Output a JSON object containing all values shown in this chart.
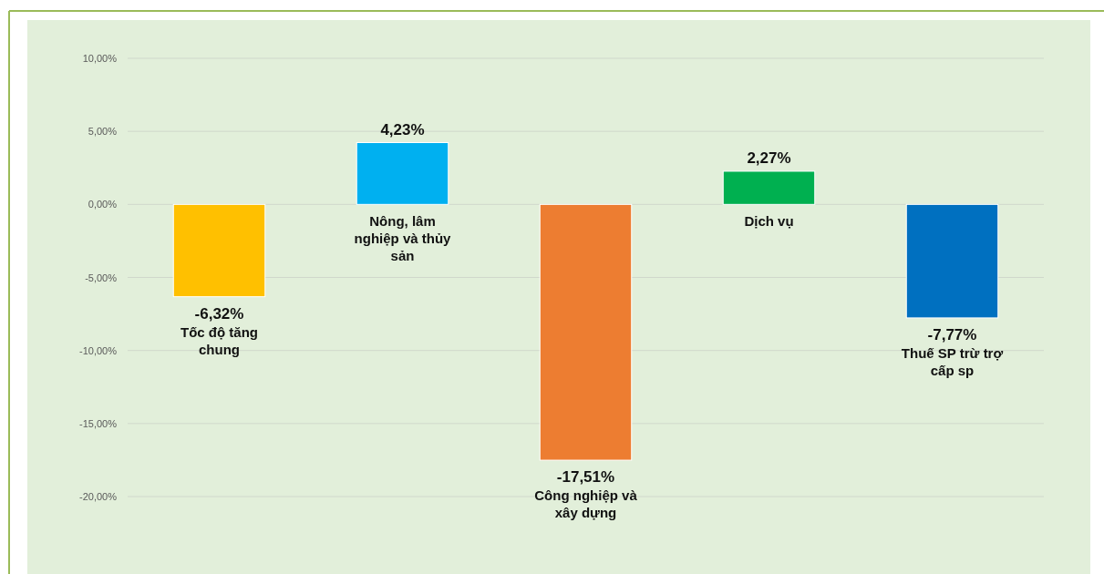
{
  "chart_data": {
    "type": "bar",
    "categories": [
      "Tốc độ tăng chung",
      "Nông, lâm nghiệp và thủy sản",
      "Công nghiệp và xây dựng",
      "Dịch vụ",
      "Thuế SP trừ trợ cấp sp"
    ],
    "values": [
      -6.32,
      4.23,
      -17.51,
      2.27,
      -7.77
    ],
    "colors": [
      "#ffc000",
      "#00b0f0",
      "#ed7d31",
      "#00b050",
      "#0070c0"
    ],
    "value_labels": [
      "-6,32%",
      "4,23%",
      "-17,51%",
      "2,27%",
      "-7,77%"
    ],
    "ylim": [
      -20,
      10
    ],
    "yticks": [
      {
        "value": 10,
        "label": "10,00%"
      },
      {
        "value": 5,
        "label": "5,00%"
      },
      {
        "value": 0,
        "label": "0,00%"
      },
      {
        "value": -5,
        "label": "-5,00%"
      },
      {
        "value": -10,
        "label": "-10,00%"
      },
      {
        "value": -15,
        "label": "-15,00%"
      },
      {
        "value": -20,
        "label": "-20,00%"
      }
    ],
    "grid": "y"
  }
}
